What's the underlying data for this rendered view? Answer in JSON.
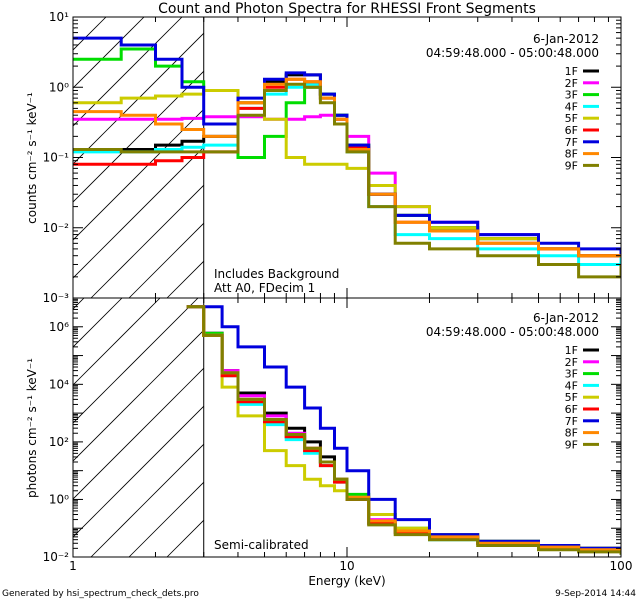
{
  "title": "Count and Photon Spectra for RHESSI Front Segments",
  "footer_left": "Generated by hsi_spectrum_check_dets.pro",
  "footer_right": "9-Sep-2014 14:44",
  "colors": {
    "1F": "#000000",
    "2F": "#ff00ff",
    "3F": "#00dd00",
    "4F": "#00ffff",
    "5F": "#cccc00",
    "6F": "#ff0000",
    "7F": "#0000dd",
    "8F": "#ff8800",
    "9F": "#808000"
  },
  "chart_data": [
    {
      "type": "line",
      "title": "Count and Photon Spectra for RHESSI Front Segments",
      "xlabel": "",
      "ylabel": "counts cm⁻² s⁻¹ keV⁻¹",
      "xscale": "log",
      "yscale": "log",
      "xlim": [
        1,
        100
      ],
      "ylim": [
        0.001,
        10
      ],
      "x_ticks": [
        1,
        10,
        100
      ],
      "y_ticks": [
        "10⁻³",
        "10⁻²",
        "10⁻¹",
        "10⁰",
        "10¹"
      ],
      "legend_date": "6-Jan-2012",
      "legend_time": "04:59:48.000 - 05:00:48.000",
      "legend_position": "top-right",
      "annotations": [
        "Includes Background",
        "Att A0, FDecim 1"
      ],
      "hatched_region_x": [
        1,
        3
      ],
      "series": [
        {
          "name": "1F",
          "x": [
            1,
            1.5,
            2,
            2.5,
            3,
            4,
            5,
            6,
            7,
            8,
            9,
            10,
            12,
            15,
            20,
            30,
            50,
            70,
            100
          ],
          "values": [
            0.13,
            0.13,
            0.15,
            0.17,
            0.2,
            0.6,
            1.2,
            1.5,
            1.5,
            0.8,
            0.4,
            0.15,
            0.03,
            0.015,
            0.01,
            0.007,
            0.005,
            0.004,
            0.005
          ]
        },
        {
          "name": "2F",
          "x": [
            1,
            1.5,
            2,
            2.5,
            3,
            4,
            5,
            6,
            7,
            8,
            9,
            10,
            12,
            15,
            20,
            30,
            50,
            70,
            100
          ],
          "values": [
            0.35,
            0.35,
            0.35,
            0.36,
            0.38,
            0.38,
            0.35,
            0.35,
            0.38,
            0.4,
            0.35,
            0.2,
            0.06,
            0.02,
            0.012,
            0.008,
            0.005,
            0.004,
            0.004
          ]
        },
        {
          "name": "3F",
          "x": [
            1,
            1.5,
            2,
            2.5,
            3,
            4,
            5,
            6,
            7,
            8,
            9,
            10,
            12,
            15,
            20,
            30,
            50,
            70,
            100
          ],
          "values": [
            2.5,
            3.5,
            2.0,
            1.2,
            0.9,
            0.1,
            0.2,
            0.6,
            1.0,
            0.8,
            0.4,
            0.15,
            0.03,
            0.015,
            0.01,
            0.007,
            0.005,
            0.004,
            0.004
          ]
        },
        {
          "name": "4F",
          "x": [
            1,
            1.5,
            2,
            2.5,
            3,
            4,
            5,
            6,
            7,
            8,
            9,
            10,
            12,
            15,
            20,
            30,
            50,
            70,
            100
          ],
          "values": [
            0.12,
            0.12,
            0.13,
            0.14,
            0.15,
            0.5,
            0.8,
            1.0,
            1.1,
            0.7,
            0.35,
            0.12,
            0.02,
            0.008,
            0.007,
            0.005,
            0.004,
            0.003,
            0.004
          ]
        },
        {
          "name": "5F",
          "x": [
            1,
            1.5,
            2,
            2.5,
            3,
            4,
            5,
            6,
            7,
            8,
            9,
            10,
            12,
            15,
            20,
            30,
            50,
            70,
            100
          ],
          "values": [
            0.6,
            0.7,
            0.75,
            0.8,
            0.9,
            0.6,
            0.35,
            0.1,
            0.08,
            0.08,
            0.08,
            0.07,
            0.04,
            0.02,
            0.01,
            0.007,
            0.005,
            0.004,
            0.004
          ]
        },
        {
          "name": "6F",
          "x": [
            1,
            1.5,
            2,
            2.5,
            3,
            4,
            5,
            6,
            7,
            8,
            9,
            10,
            12,
            15,
            20,
            30,
            50,
            70,
            100
          ],
          "values": [
            0.08,
            0.08,
            0.09,
            0.1,
            0.12,
            0.5,
            1.0,
            1.3,
            1.2,
            0.7,
            0.35,
            0.14,
            0.03,
            0.012,
            0.009,
            0.006,
            0.005,
            0.004,
            0.004
          ]
        },
        {
          "name": "7F",
          "x": [
            1,
            1.5,
            2,
            2.5,
            3,
            4,
            5,
            6,
            7,
            8,
            9,
            10,
            12,
            15,
            20,
            30,
            50,
            70,
            100
          ],
          "values": [
            5.0,
            4.0,
            2.5,
            1.0,
            0.3,
            0.7,
            1.3,
            1.6,
            1.5,
            0.8,
            0.4,
            0.15,
            0.03,
            0.015,
            0.012,
            0.008,
            0.006,
            0.005,
            0.004
          ]
        },
        {
          "name": "8F",
          "x": [
            1,
            1.5,
            2,
            2.5,
            3,
            4,
            5,
            6,
            7,
            8,
            9,
            10,
            12,
            15,
            20,
            30,
            50,
            70,
            100
          ],
          "values": [
            0.45,
            0.4,
            0.3,
            0.25,
            0.2,
            0.6,
            1.1,
            1.3,
            1.2,
            0.7,
            0.35,
            0.13,
            0.03,
            0.012,
            0.009,
            0.006,
            0.005,
            0.004,
            0.004
          ]
        },
        {
          "name": "9F",
          "x": [
            1,
            1.5,
            2,
            2.5,
            3,
            4,
            5,
            6,
            7,
            8,
            9,
            10,
            12,
            15,
            20,
            30,
            50,
            70,
            100
          ],
          "values": [
            0.13,
            0.12,
            0.12,
            0.12,
            0.12,
            0.4,
            0.9,
            1.1,
            1.0,
            0.6,
            0.3,
            0.12,
            0.02,
            0.006,
            0.005,
            0.004,
            0.003,
            0.002,
            0.003
          ]
        }
      ]
    },
    {
      "type": "line",
      "title": "",
      "xlabel": "Energy (keV)",
      "ylabel": "photons cm⁻² s⁻¹ keV⁻¹",
      "xscale": "log",
      "yscale": "log",
      "xlim": [
        1,
        100
      ],
      "ylim": [
        0.01,
        10000000
      ],
      "x_ticks": [
        1,
        10,
        100
      ],
      "y_ticks": [
        "10⁻²",
        "10⁰",
        "10²",
        "10⁴",
        "10⁶"
      ],
      "legend_date": "6-Jan-2012",
      "legend_time": "04:59:48.000 - 05:00:48.000",
      "legend_position": "top-right",
      "annotations": [
        "Semi-calibrated"
      ],
      "hatched_region_x": [
        1,
        3
      ],
      "series": [
        {
          "name": "1F",
          "x": [
            2.6,
            3,
            3.5,
            4,
            5,
            6,
            7,
            8,
            9,
            10,
            12,
            15,
            20,
            30,
            50,
            70,
            100
          ],
          "values": [
            5000000,
            600000,
            30000,
            5000,
            1000,
            300,
            100,
            30,
            5,
            1.0,
            0.15,
            0.08,
            0.05,
            0.03,
            0.025,
            0.02,
            0.015
          ]
        },
        {
          "name": "2F",
          "x": [
            2.6,
            3,
            3.5,
            4,
            5,
            6,
            7,
            8,
            9,
            10,
            12,
            15,
            20,
            30,
            50,
            70,
            100
          ],
          "values": [
            5000000,
            600000,
            30000,
            4000,
            800,
            200,
            60,
            20,
            5,
            1.2,
            0.2,
            0.09,
            0.05,
            0.03,
            0.025,
            0.02,
            0.015
          ]
        },
        {
          "name": "3F",
          "x": [
            2.6,
            3,
            3.5,
            4,
            5,
            6,
            7,
            8,
            9,
            10,
            12,
            15,
            20,
            30,
            50,
            70,
            100
          ],
          "values": [
            5000000,
            600000,
            25000,
            3000,
            500,
            150,
            50,
            20,
            5,
            1.5,
            0.3,
            0.1,
            0.06,
            0.035,
            0.025,
            0.02,
            0.018
          ]
        },
        {
          "name": "4F",
          "x": [
            2.6,
            3,
            3.5,
            4,
            5,
            6,
            7,
            8,
            9,
            10,
            12,
            15,
            20,
            30,
            50,
            70,
            100
          ],
          "values": [
            5000000,
            500000,
            20000,
            2000,
            400,
            120,
            40,
            15,
            4,
            1.0,
            0.15,
            0.07,
            0.04,
            0.03,
            0.02,
            0.018,
            0.012
          ]
        },
        {
          "name": "5F",
          "x": [
            2.6,
            3,
            3.5,
            4,
            5,
            6,
            7,
            8,
            9,
            10,
            12,
            15,
            20,
            30,
            50,
            70,
            100
          ],
          "values": [
            5000000,
            500000,
            8000,
            800,
            50,
            15,
            5,
            3,
            2,
            1.0,
            0.3,
            0.1,
            0.06,
            0.035,
            0.025,
            0.02,
            0.015
          ]
        },
        {
          "name": "6F",
          "x": [
            2.6,
            3,
            3.5,
            4,
            5,
            6,
            7,
            8,
            9,
            10,
            12,
            15,
            20,
            30,
            50,
            70,
            100
          ],
          "values": [
            5000000,
            500000,
            20000,
            2500,
            500,
            150,
            50,
            15,
            4,
            1.0,
            0.15,
            0.07,
            0.045,
            0.03,
            0.02,
            0.018,
            0.014
          ]
        },
        {
          "name": "7F",
          "x": [
            2.6,
            3,
            3.5,
            4,
            5,
            6,
            7,
            8,
            9,
            10,
            12,
            15,
            20,
            30,
            50,
            70,
            100
          ],
          "values": [
            5000000,
            5000000,
            1000000,
            200000,
            40000,
            8000,
            1500,
            300,
            60,
            10,
            1.0,
            0.2,
            0.06,
            0.035,
            0.025,
            0.02,
            0.015
          ]
        },
        {
          "name": "8F",
          "x": [
            2.6,
            3,
            3.5,
            4,
            5,
            6,
            7,
            8,
            9,
            10,
            12,
            15,
            20,
            30,
            50,
            70,
            100
          ],
          "values": [
            5000000,
            500000,
            25000,
            3000,
            600,
            180,
            60,
            20,
            5,
            1.2,
            0.18,
            0.08,
            0.05,
            0.03,
            0.022,
            0.018,
            0.014
          ]
        },
        {
          "name": "9F",
          "x": [
            2.6,
            3,
            3.5,
            4,
            5,
            6,
            7,
            8,
            9,
            10,
            12,
            15,
            20,
            30,
            50,
            70,
            100
          ],
          "values": [
            5000000,
            500000,
            25000,
            3000,
            600,
            180,
            60,
            20,
            5,
            1.0,
            0.13,
            0.06,
            0.04,
            0.025,
            0.018,
            0.015,
            0.012
          ]
        }
      ]
    }
  ]
}
